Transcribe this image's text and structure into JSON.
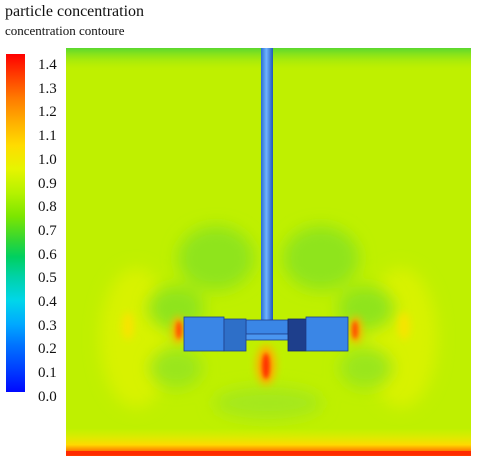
{
  "header": {
    "title": "particle concentration",
    "subtitle": "concentration contoure"
  },
  "legend": {
    "labels": [
      "1.4",
      "1.3",
      "1.2",
      "1.1",
      "1.0",
      "0.9",
      "0.8",
      "0.7",
      "0.6",
      "0.5",
      "0.4",
      "0.3",
      "0.2",
      "0.1",
      "0.0"
    ],
    "max": 1.4,
    "min": 0.0
  },
  "colors": {
    "background_field": "#bff000",
    "low_band": "#6fdc2a",
    "high_spot": "#ff2a00",
    "shaft_blue": "#3a86e6",
    "blade_dark": "#1e3f8c"
  }
}
